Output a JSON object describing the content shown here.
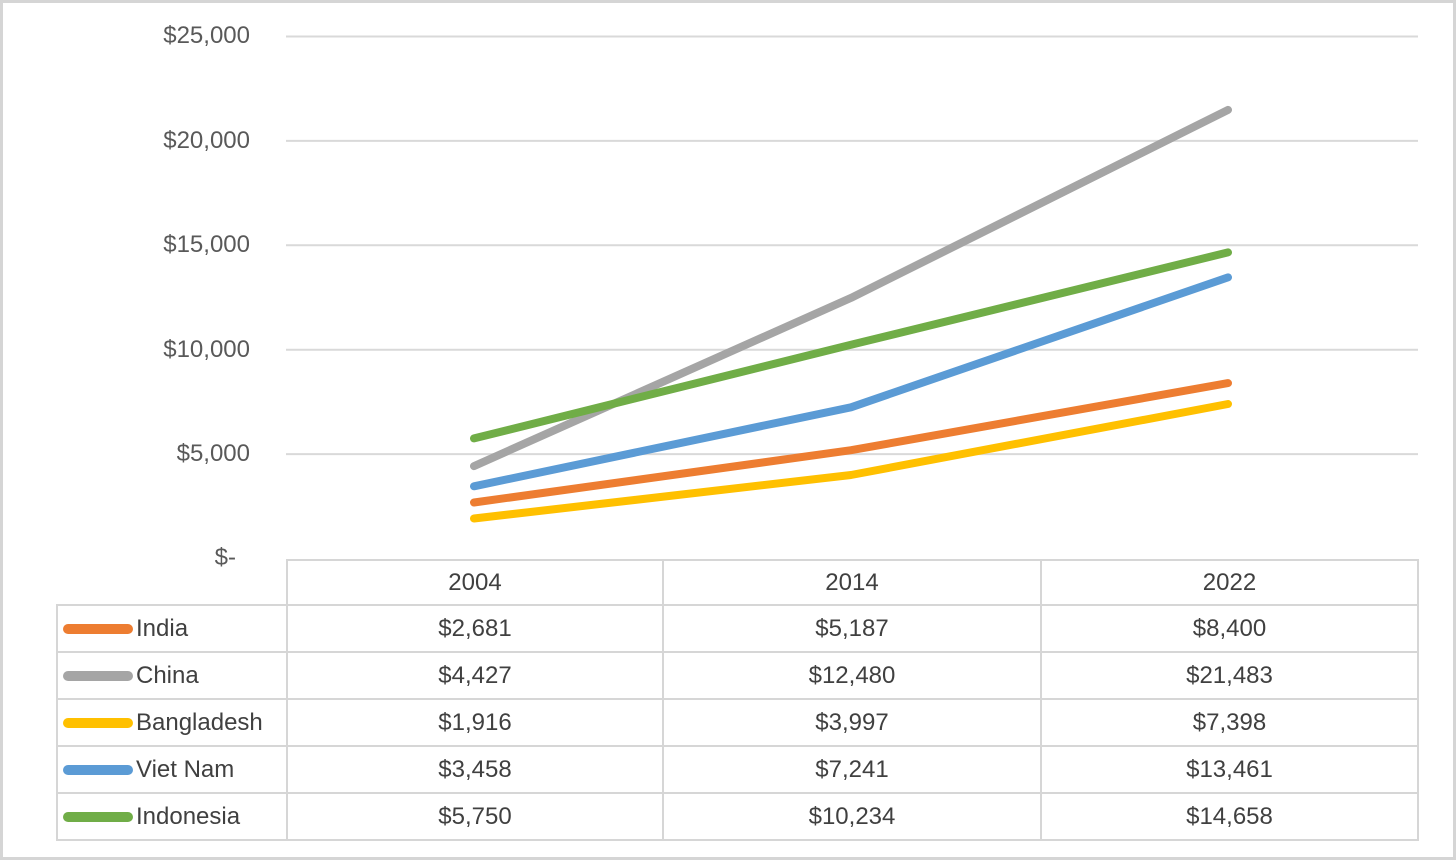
{
  "chart_data": {
    "type": "line",
    "x": [
      2004,
      2014,
      2022
    ],
    "series": [
      {
        "name": "India",
        "color": "#ED7D31",
        "values": [
          2681,
          5187,
          8400
        ]
      },
      {
        "name": "China",
        "color": "#A5A5A5",
        "values": [
          4427,
          12480,
          21483
        ]
      },
      {
        "name": "Bangladesh",
        "color": "#FFC000",
        "values": [
          1916,
          3997,
          7398
        ]
      },
      {
        "name": "Viet Nam",
        "color": "#5B9BD5",
        "values": [
          3458,
          7241,
          13461
        ]
      },
      {
        "name": "Indonesia",
        "color": "#70AD47",
        "values": [
          5750,
          10234,
          14658
        ]
      }
    ],
    "title": "",
    "xlabel": "",
    "ylabel": "",
    "ylim": [
      0,
      25000
    ],
    "ytick_interval": 5000,
    "grid": "horizontal",
    "legend_position": "table-left"
  },
  "y_axis": {
    "tick_labels": [
      "$25,000",
      "$20,000",
      "$15,000",
      "$10,000",
      "$5,000",
      "$-"
    ]
  },
  "table": {
    "column_headers": [
      "2004",
      "2014",
      "2022"
    ],
    "rows": [
      {
        "label": "India",
        "values": [
          "$2,681",
          "$5,187",
          "$8,400"
        ]
      },
      {
        "label": "China",
        "values": [
          "$4,427",
          "$12,480",
          "$21,483"
        ]
      },
      {
        "label": "Bangladesh",
        "values": [
          "$1,916",
          "$3,997",
          "$7,398"
        ]
      },
      {
        "label": "Viet Nam",
        "values": [
          "$3,458",
          "$7,241",
          "$13,461"
        ]
      },
      {
        "label": "Indonesia",
        "values": [
          "$5,750",
          "$10,234",
          "$14,658"
        ]
      }
    ]
  },
  "colors": {
    "gridline": "#D9D9D9",
    "table_border": "#D6D6D6",
    "frame_border": "#D5D5D5",
    "axis_text": "#595959",
    "table_text": "#404040",
    "background": "#FFFFFF"
  }
}
